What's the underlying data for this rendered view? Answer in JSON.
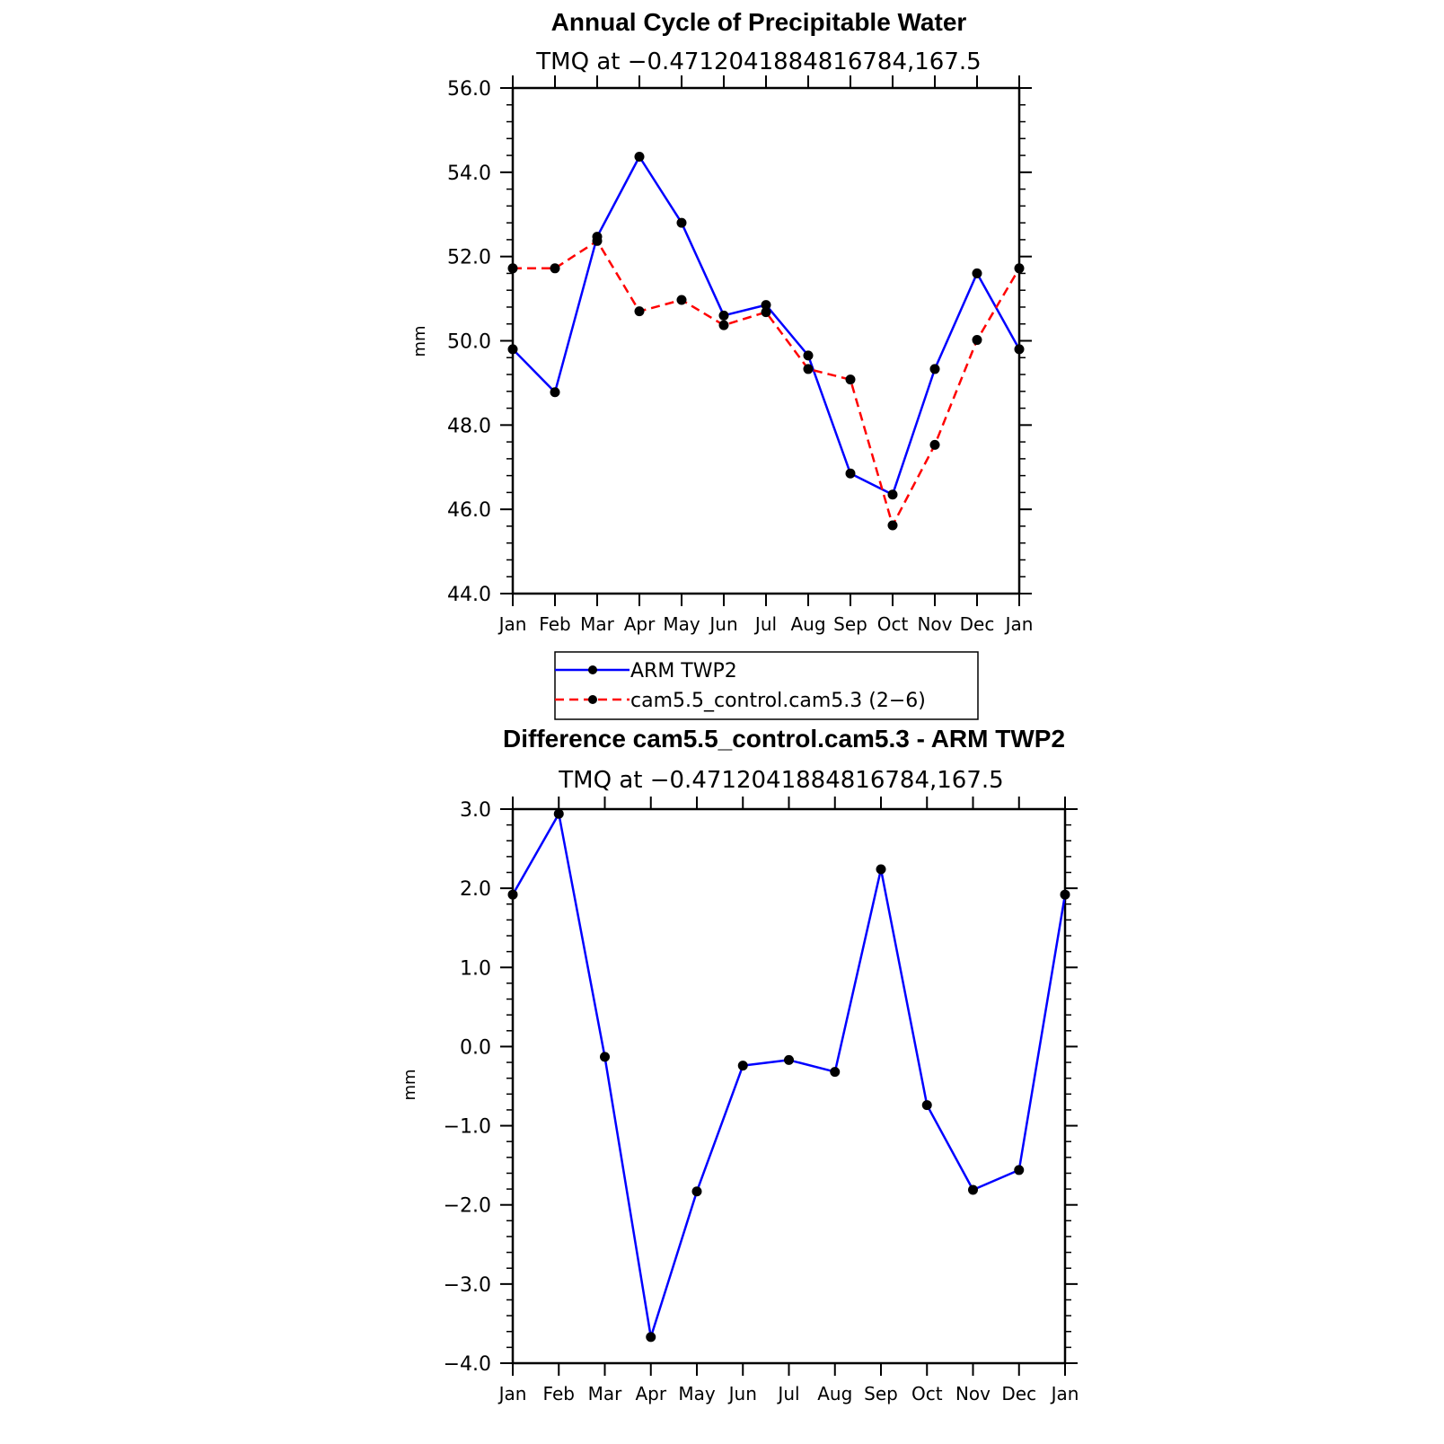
{
  "chart_data": [
    {
      "type": "line",
      "title": "Annual Cycle of Precipitable Water",
      "subtitle": "TMQ at −0.4712041884816784,167.5",
      "xlabel": "",
      "ylabel": "mm",
      "ylim": [
        44.0,
        56.0
      ],
      "yticks": [
        "44.0",
        "46.0",
        "48.0",
        "50.0",
        "52.0",
        "54.0",
        "56.0"
      ],
      "categories": [
        "Jan",
        "Feb",
        "Mar",
        "Apr",
        "May",
        "Jun",
        "Jul",
        "Aug",
        "Sep",
        "Oct",
        "Nov",
        "Dec",
        "Jan"
      ],
      "series": [
        {
          "name": "ARM TWP2",
          "color": "#0000ff",
          "dash": "solid",
          "values": [
            49.8,
            48.78,
            52.47,
            54.37,
            52.8,
            50.6,
            50.85,
            49.65,
            46.85,
            46.35,
            49.33,
            51.6,
            49.8
          ]
        },
        {
          "name": "cam5.5_control.cam5.3 (2−6)",
          "color": "#ff0000",
          "dash": "dashed",
          "values": [
            51.72,
            51.72,
            52.37,
            50.7,
            50.97,
            50.37,
            50.68,
            49.33,
            49.08,
            45.62,
            47.53,
            50.02,
            51.72
          ]
        }
      ],
      "legend": [
        "ARM TWP2",
        "cam5.5_control.cam5.3 (2−6)"
      ]
    },
    {
      "type": "line",
      "title": "Difference cam5.5_control.cam5.3 - ARM TWP2",
      "subtitle": "TMQ at −0.4712041884816784,167.5",
      "xlabel": "",
      "ylabel": "mm",
      "ylim": [
        -4.0,
        3.0
      ],
      "yticks": [
        "−4.0",
        "−3.0",
        "−2.0",
        "−1.0",
        "0.0",
        "1.0",
        "2.0",
        "3.0"
      ],
      "categories": [
        "Jan",
        "Feb",
        "Mar",
        "Apr",
        "May",
        "Jun",
        "Jul",
        "Aug",
        "Sep",
        "Oct",
        "Nov",
        "Dec",
        "Jan"
      ],
      "series": [
        {
          "name": "difference",
          "color": "#0000ff",
          "dash": "solid",
          "values": [
            1.92,
            2.94,
            -0.13,
            -3.67,
            -1.83,
            -0.24,
            -0.17,
            -0.32,
            2.24,
            -0.74,
            -1.81,
            -1.56,
            1.92
          ]
        }
      ]
    }
  ]
}
